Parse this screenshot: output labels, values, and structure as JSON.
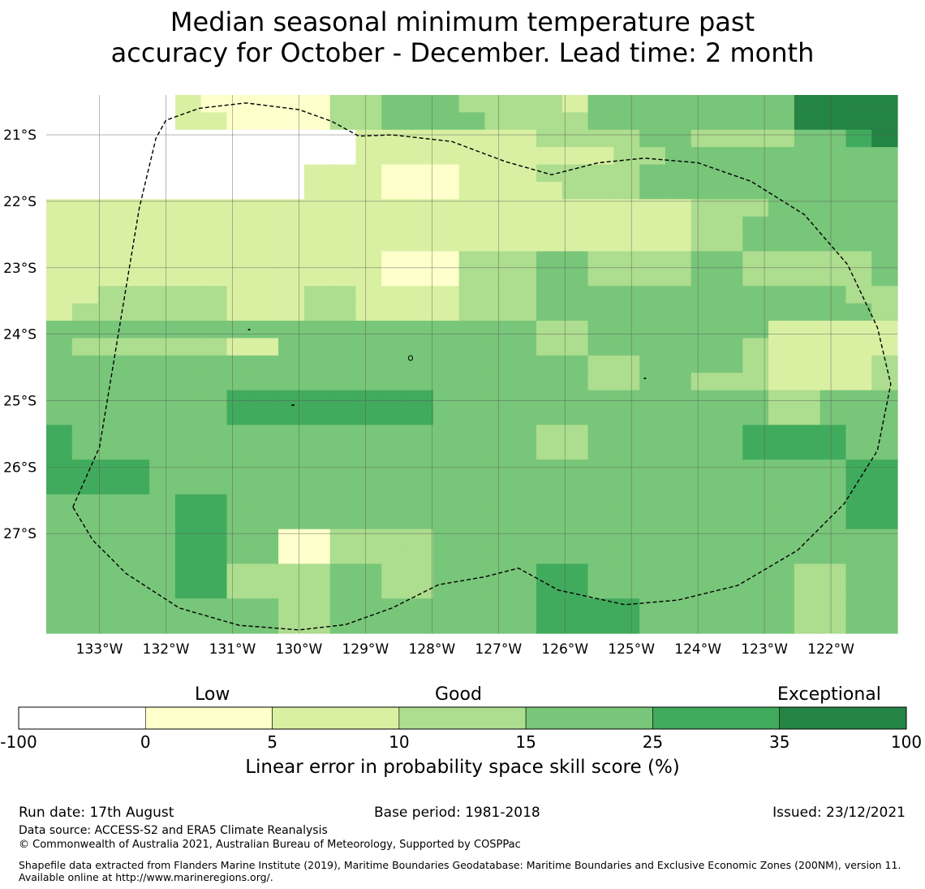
{
  "title": {
    "line1": "Median seasonal minimum temperature past",
    "line2": "accuracy for October - December. Lead time: 2 month"
  },
  "map": {
    "lon_range": [
      -133.8,
      -121.0
    ],
    "lat_range": [
      -28.5,
      -20.4
    ],
    "lon_ticks": [
      {
        "value": -133,
        "label": "133°W"
      },
      {
        "value": -132,
        "label": "132°W"
      },
      {
        "value": -131,
        "label": "131°W"
      },
      {
        "value": -130,
        "label": "130°W"
      },
      {
        "value": -129,
        "label": "129°W"
      },
      {
        "value": -128,
        "label": "128°W"
      },
      {
        "value": -127,
        "label": "127°W"
      },
      {
        "value": -126,
        "label": "126°W"
      },
      {
        "value": -125,
        "label": "125°W"
      },
      {
        "value": -124,
        "label": "124°W"
      },
      {
        "value": -123,
        "label": "123°W"
      },
      {
        "value": -122,
        "label": "122°W"
      }
    ],
    "lat_ticks": [
      {
        "value": -21,
        "label": "21°S"
      },
      {
        "value": -22,
        "label": "22°S"
      },
      {
        "value": -23,
        "label": "23°S"
      },
      {
        "value": -24,
        "label": "24°S"
      },
      {
        "value": -25,
        "label": "25°S"
      },
      {
        "value": -26,
        "label": "26°S"
      },
      {
        "value": -27,
        "label": "27°S"
      }
    ],
    "grid_lines": true,
    "grid_note": "class index per cell: 0=-100..0, 1=0..5, 2=5..10, 3=10..15, 4=15..25, 5=25..35, 6=35..100",
    "grid": [
      [
        0,
        0,
        0,
        0,
        0,
        2,
        1,
        1,
        1,
        1,
        1,
        3,
        3,
        4,
        4,
        4,
        3,
        3,
        3,
        3,
        2,
        4,
        4,
        4,
        4,
        4,
        4,
        4,
        4,
        6,
        6,
        6,
        6
      ],
      [
        0,
        0,
        0,
        0,
        0,
        2,
        2,
        1,
        1,
        1,
        1,
        3,
        3,
        4,
        4,
        4,
        4,
        3,
        3,
        3,
        3,
        4,
        4,
        4,
        4,
        4,
        4,
        4,
        4,
        6,
        6,
        6,
        6
      ],
      [
        0,
        0,
        0,
        0,
        0,
        0,
        0,
        0,
        0,
        0,
        0,
        0,
        2,
        2,
        2,
        2,
        2,
        2,
        2,
        3,
        3,
        3,
        3,
        4,
        4,
        3,
        3,
        3,
        3,
        4,
        4,
        5,
        6
      ],
      [
        0,
        0,
        0,
        0,
        0,
        0,
        0,
        0,
        0,
        0,
        0,
        0,
        2,
        2,
        2,
        2,
        2,
        2,
        2,
        2,
        2,
        2,
        3,
        3,
        4,
        4,
        4,
        4,
        4,
        4,
        4,
        4,
        4
      ],
      [
        0,
        0,
        0,
        0,
        0,
        0,
        0,
        0,
        0,
        0,
        2,
        2,
        2,
        1,
        1,
        1,
        2,
        2,
        2,
        3,
        3,
        3,
        3,
        4,
        4,
        4,
        4,
        4,
        4,
        4,
        4,
        4,
        4
      ],
      [
        0,
        0,
        0,
        0,
        0,
        0,
        0,
        0,
        0,
        0,
        2,
        2,
        2,
        1,
        1,
        1,
        2,
        2,
        2,
        2,
        3,
        3,
        3,
        4,
        4,
        4,
        4,
        4,
        4,
        4,
        4,
        4,
        4
      ],
      [
        2,
        2,
        2,
        2,
        2,
        2,
        2,
        2,
        2,
        2,
        2,
        2,
        2,
        2,
        2,
        2,
        2,
        2,
        2,
        2,
        2,
        2,
        2,
        2,
        2,
        3,
        3,
        3,
        4,
        4,
        4,
        4,
        4
      ],
      [
        2,
        2,
        2,
        2,
        2,
        2,
        2,
        2,
        2,
        2,
        2,
        2,
        2,
        2,
        2,
        2,
        2,
        2,
        2,
        2,
        2,
        2,
        2,
        2,
        2,
        3,
        3,
        4,
        4,
        4,
        4,
        4,
        4
      ],
      [
        2,
        2,
        2,
        2,
        2,
        2,
        2,
        2,
        2,
        2,
        2,
        2,
        2,
        2,
        2,
        2,
        2,
        2,
        2,
        2,
        2,
        2,
        2,
        2,
        2,
        3,
        3,
        4,
        4,
        4,
        4,
        4,
        4
      ],
      [
        2,
        2,
        2,
        2,
        2,
        2,
        2,
        2,
        2,
        2,
        2,
        2,
        2,
        1,
        1,
        1,
        3,
        3,
        3,
        4,
        4,
        3,
        3,
        3,
        3,
        4,
        4,
        3,
        3,
        3,
        3,
        3,
        4
      ],
      [
        2,
        2,
        2,
        2,
        2,
        2,
        2,
        2,
        2,
        2,
        2,
        2,
        2,
        1,
        1,
        1,
        3,
        3,
        3,
        4,
        4,
        3,
        3,
        3,
        3,
        4,
        4,
        3,
        3,
        3,
        3,
        3,
        4
      ],
      [
        2,
        2,
        3,
        3,
        3,
        3,
        3,
        2,
        2,
        2,
        3,
        3,
        2,
        2,
        2,
        2,
        3,
        3,
        3,
        4,
        4,
        4,
        4,
        4,
        4,
        4,
        4,
        4,
        4,
        4,
        4,
        3,
        3
      ],
      [
        2,
        3,
        3,
        3,
        3,
        3,
        3,
        2,
        2,
        2,
        3,
        3,
        2,
        2,
        2,
        2,
        3,
        3,
        3,
        4,
        4,
        4,
        4,
        4,
        4,
        4,
        4,
        4,
        4,
        4,
        4,
        4,
        3
      ],
      [
        4,
        4,
        4,
        4,
        4,
        4,
        4,
        4,
        4,
        4,
        4,
        4,
        4,
        4,
        4,
        4,
        4,
        4,
        4,
        3,
        3,
        4,
        4,
        4,
        4,
        4,
        4,
        4,
        2,
        2,
        2,
        2,
        2
      ],
      [
        4,
        3,
        3,
        3,
        3,
        3,
        3,
        2,
        2,
        4,
        4,
        4,
        4,
        4,
        4,
        4,
        4,
        4,
        4,
        3,
        3,
        4,
        4,
        4,
        4,
        4,
        4,
        3,
        2,
        2,
        2,
        2,
        2
      ],
      [
        4,
        4,
        4,
        4,
        4,
        4,
        4,
        4,
        4,
        4,
        4,
        4,
        4,
        4,
        4,
        4,
        4,
        4,
        4,
        4,
        4,
        3,
        3,
        4,
        4,
        4,
        4,
        3,
        2,
        2,
        2,
        2,
        3
      ],
      [
        4,
        4,
        4,
        4,
        4,
        4,
        4,
        4,
        4,
        4,
        4,
        4,
        4,
        4,
        4,
        4,
        4,
        4,
        4,
        4,
        4,
        3,
        3,
        4,
        4,
        3,
        3,
        3,
        2,
        2,
        2,
        2,
        3
      ],
      [
        4,
        4,
        4,
        4,
        4,
        4,
        4,
        5,
        5,
        5,
        5,
        5,
        5,
        5,
        5,
        4,
        4,
        4,
        4,
        4,
        4,
        4,
        4,
        4,
        4,
        4,
        4,
        4,
        3,
        3,
        4,
        4,
        4
      ],
      [
        4,
        4,
        4,
        4,
        4,
        4,
        4,
        5,
        5,
        5,
        5,
        5,
        5,
        5,
        5,
        4,
        4,
        4,
        4,
        4,
        4,
        4,
        4,
        4,
        4,
        4,
        4,
        4,
        3,
        3,
        4,
        4,
        4
      ],
      [
        5,
        4,
        4,
        4,
        4,
        4,
        4,
        4,
        4,
        4,
        4,
        4,
        4,
        4,
        4,
        4,
        4,
        4,
        4,
        3,
        3,
        4,
        4,
        4,
        4,
        4,
        4,
        5,
        5,
        5,
        5,
        4,
        4
      ],
      [
        5,
        4,
        4,
        4,
        4,
        4,
        4,
        4,
        4,
        4,
        4,
        4,
        4,
        4,
        4,
        4,
        4,
        4,
        4,
        3,
        3,
        4,
        4,
        4,
        4,
        4,
        4,
        5,
        5,
        5,
        5,
        4,
        4
      ],
      [
        5,
        5,
        5,
        5,
        4,
        4,
        4,
        4,
        4,
        4,
        4,
        4,
        4,
        4,
        4,
        4,
        4,
        4,
        4,
        4,
        4,
        4,
        4,
        4,
        4,
        4,
        4,
        4,
        4,
        4,
        4,
        5,
        5
      ],
      [
        5,
        5,
        5,
        5,
        4,
        4,
        4,
        4,
        4,
        4,
        4,
        4,
        4,
        4,
        4,
        4,
        4,
        4,
        4,
        4,
        4,
        4,
        4,
        4,
        4,
        4,
        4,
        4,
        4,
        4,
        4,
        5,
        5
      ],
      [
        4,
        4,
        4,
        4,
        4,
        5,
        5,
        4,
        4,
        4,
        4,
        4,
        4,
        4,
        4,
        4,
        4,
        4,
        4,
        4,
        4,
        4,
        4,
        4,
        4,
        4,
        4,
        4,
        4,
        4,
        4,
        5,
        5
      ],
      [
        4,
        4,
        4,
        4,
        4,
        5,
        5,
        4,
        4,
        4,
        4,
        4,
        4,
        4,
        4,
        4,
        4,
        4,
        4,
        4,
        4,
        4,
        4,
        4,
        4,
        4,
        4,
        4,
        4,
        4,
        4,
        5,
        5
      ],
      [
        4,
        4,
        4,
        4,
        4,
        5,
        5,
        4,
        4,
        1,
        1,
        3,
        3,
        3,
        3,
        4,
        4,
        4,
        4,
        4,
        4,
        4,
        4,
        4,
        4,
        4,
        4,
        4,
        4,
        4,
        4,
        4,
        4
      ],
      [
        4,
        4,
        4,
        4,
        4,
        5,
        5,
        4,
        4,
        1,
        1,
        3,
        3,
        3,
        3,
        4,
        4,
        4,
        4,
        4,
        4,
        4,
        4,
        4,
        4,
        4,
        4,
        4,
        4,
        4,
        4,
        4,
        4
      ],
      [
        4,
        4,
        4,
        4,
        4,
        5,
        5,
        3,
        3,
        3,
        3,
        4,
        4,
        3,
        3,
        4,
        4,
        4,
        4,
        5,
        5,
        4,
        4,
        4,
        4,
        4,
        4,
        4,
        4,
        3,
        3,
        4,
        4
      ],
      [
        4,
        4,
        4,
        4,
        4,
        5,
        5,
        3,
        3,
        3,
        3,
        4,
        4,
        3,
        3,
        4,
        4,
        4,
        4,
        5,
        5,
        4,
        4,
        4,
        4,
        4,
        4,
        4,
        4,
        3,
        3,
        4,
        4
      ],
      [
        4,
        4,
        4,
        4,
        4,
        4,
        4,
        4,
        4,
        3,
        3,
        4,
        4,
        4,
        4,
        4,
        4,
        4,
        4,
        5,
        5,
        5,
        5,
        4,
        4,
        4,
        4,
        4,
        4,
        3,
        3,
        4,
        4
      ],
      [
        4,
        4,
        4,
        4,
        4,
        4,
        4,
        4,
        4,
        3,
        3,
        4,
        4,
        4,
        4,
        4,
        4,
        4,
        4,
        5,
        5,
        5,
        5,
        4,
        4,
        4,
        4,
        4,
        4,
        3,
        3,
        4,
        4
      ]
    ],
    "boundary": [
      [
        -133.4,
        -26.6
      ],
      [
        -133.0,
        -25.7
      ],
      [
        -132.8,
        -24.5
      ],
      [
        -132.6,
        -23.3
      ],
      [
        -132.4,
        -22.1
      ],
      [
        -132.15,
        -21.05
      ],
      [
        -132.0,
        -20.78
      ],
      [
        -131.5,
        -20.6
      ],
      [
        -130.8,
        -20.52
      ],
      [
        -130.0,
        -20.62
      ],
      [
        -129.5,
        -20.8
      ],
      [
        -129.1,
        -21.02
      ],
      [
        -128.6,
        -21.0
      ],
      [
        -127.7,
        -21.1
      ],
      [
        -126.9,
        -21.4
      ],
      [
        -126.2,
        -21.6
      ],
      [
        -125.5,
        -21.42
      ],
      [
        -124.8,
        -21.35
      ],
      [
        -124.0,
        -21.42
      ],
      [
        -123.2,
        -21.7
      ],
      [
        -122.4,
        -22.2
      ],
      [
        -121.75,
        -22.95
      ],
      [
        -121.3,
        -23.9
      ],
      [
        -121.1,
        -24.75
      ],
      [
        -121.3,
        -25.75
      ],
      [
        -121.8,
        -26.55
      ],
      [
        -122.5,
        -27.25
      ],
      [
        -123.4,
        -27.78
      ],
      [
        -124.3,
        -28.0
      ],
      [
        -125.1,
        -28.07
      ],
      [
        -126.1,
        -27.85
      ],
      [
        -126.7,
        -27.52
      ],
      [
        -127.2,
        -27.65
      ],
      [
        -127.9,
        -27.77
      ],
      [
        -128.6,
        -28.12
      ],
      [
        -129.3,
        -28.37
      ],
      [
        -130.0,
        -28.45
      ],
      [
        -130.9,
        -28.38
      ],
      [
        -131.8,
        -28.12
      ],
      [
        -132.6,
        -27.6
      ],
      [
        -133.1,
        -27.1
      ],
      [
        -133.4,
        -26.6
      ]
    ]
  },
  "colorbar": {
    "colors": [
      "#ffffff",
      "#ffffcc",
      "#d9f0a3",
      "#addd8e",
      "#78c679",
      "#41ab5d",
      "#238443"
    ],
    "ticks": [
      "-100",
      "0",
      "5",
      "10",
      "15",
      "25",
      "35",
      "100"
    ],
    "category_low": "Low",
    "category_good": "Good",
    "category_exceptional": "Exceptional",
    "label": "Linear error in probability space skill score (%)"
  },
  "footer": {
    "run_date": "Run date: 17th August",
    "base_period": "Base period: 1981-2018",
    "issued": "Issued: 23/12/2021",
    "data_source": "Data source: ACCESS-S2 and ERA5 Climate Reanalysis",
    "copyright": "© Commonwealth of Australia 2021, Australian Bureau of Meteorology, Supported by COSPPac",
    "shapefile": "Shapefile data extracted from Flanders Marine Institute (2019), Maritime Boundaries Geodatabase: Maritime Boundaries and Exclusive Economic Zones (200NM), version 11. Available online at http://www.marineregions.org/."
  }
}
